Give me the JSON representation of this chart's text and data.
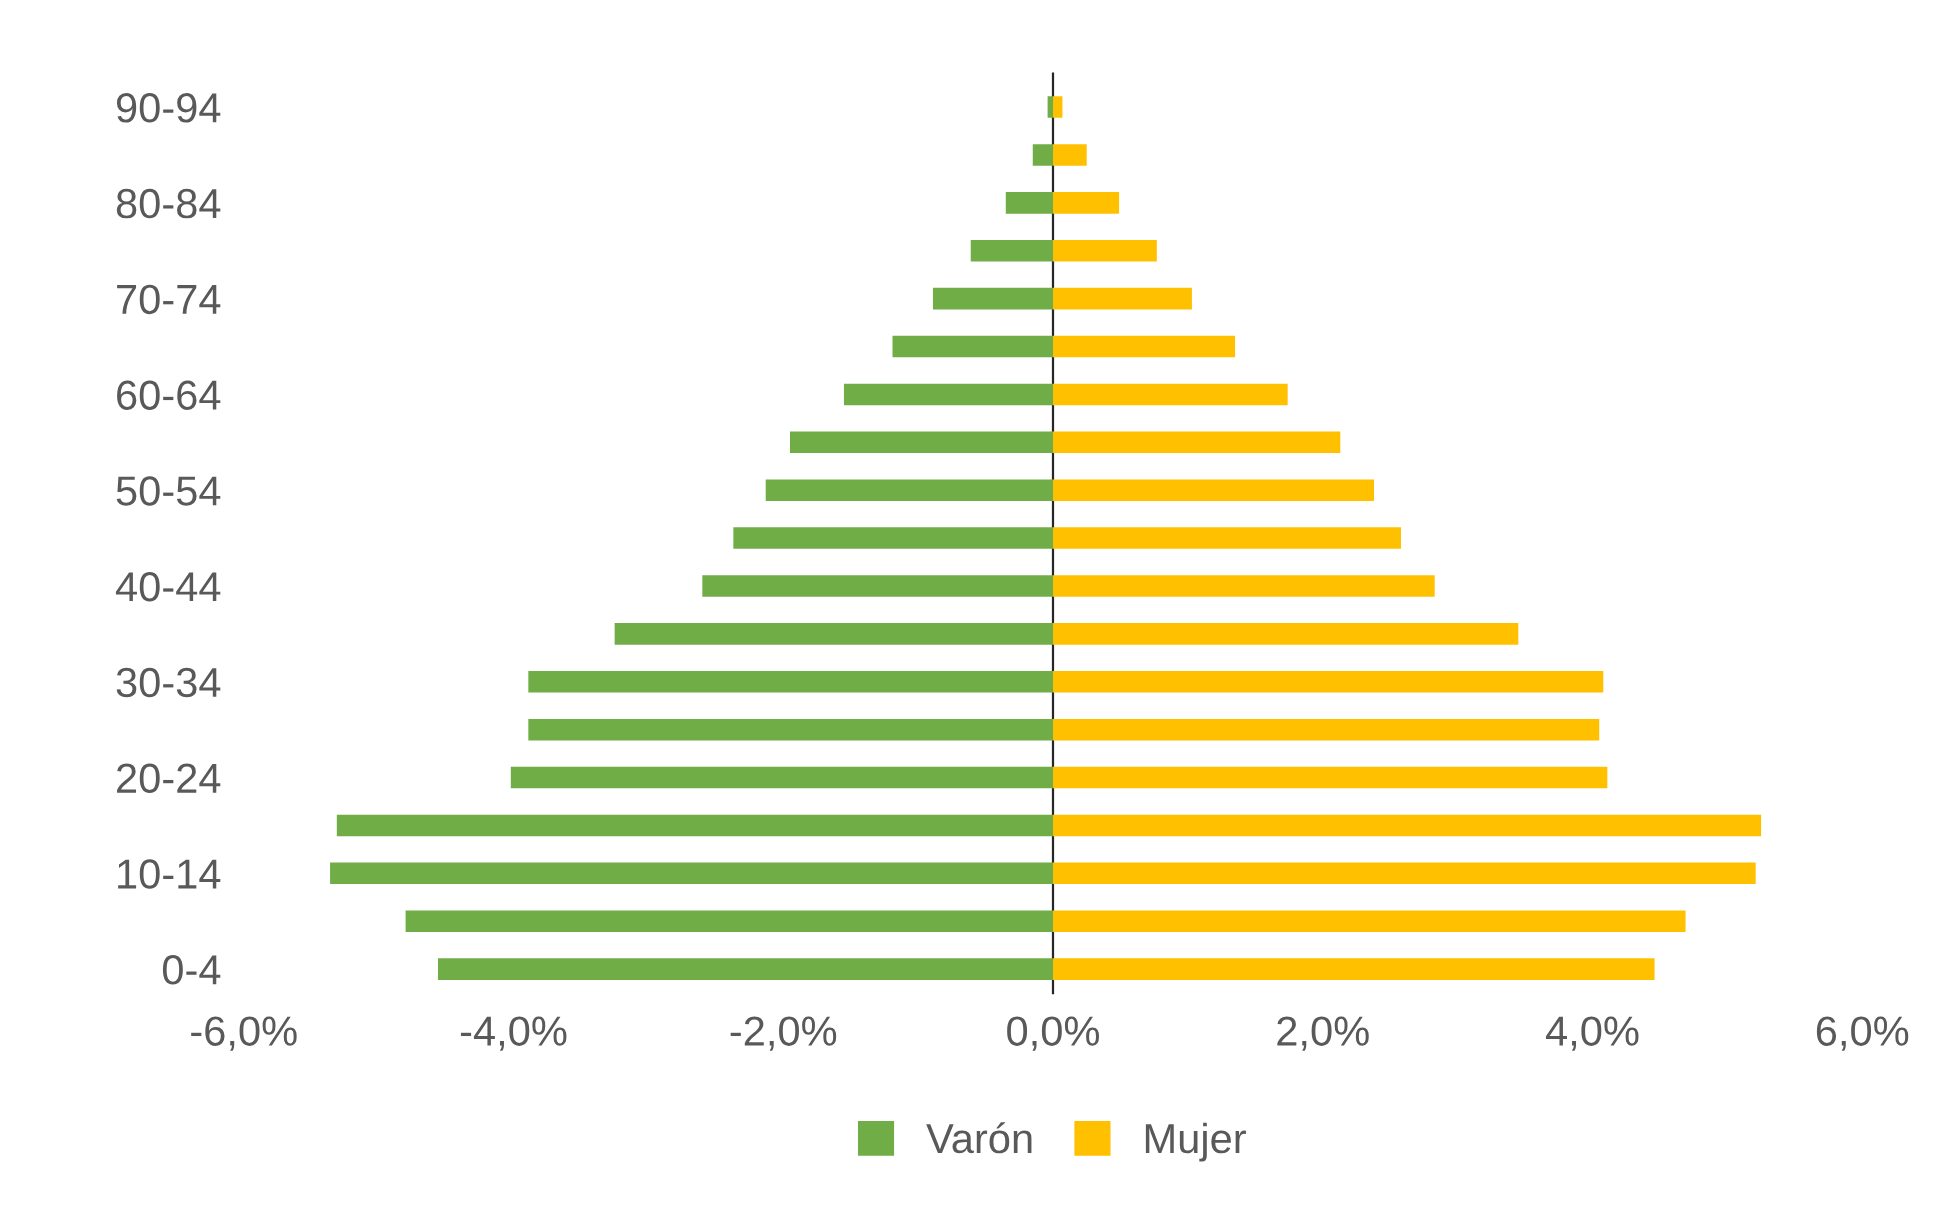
{
  "chart_data": {
    "type": "bar",
    "orientation": "horizontal",
    "stacked": true,
    "categories": [
      "90-94",
      null,
      "80-84",
      null,
      "70-74",
      null,
      "60-64",
      null,
      "50-54",
      null,
      "40-44",
      null,
      "30-34",
      null,
      "20-24",
      null,
      "10-14",
      null,
      "0-4"
    ],
    "series": [
      {
        "name": "Varón",
        "color": "#70ad47",
        "values": [
          -0.04,
          -0.15,
          -0.35,
          -0.61,
          -0.89,
          -1.19,
          -1.55,
          -1.95,
          -2.13,
          -2.37,
          -2.6,
          -3.25,
          -3.89,
          -3.89,
          -4.02,
          -5.31,
          -5.36,
          -4.8,
          -4.56
        ]
      },
      {
        "name": "Mujer",
        "color": "#ffc000",
        "values": [
          0.07,
          0.25,
          0.49,
          0.77,
          1.03,
          1.35,
          1.74,
          2.13,
          2.38,
          2.58,
          2.83,
          3.45,
          4.08,
          4.05,
          4.11,
          5.25,
          5.21,
          4.69,
          4.46
        ]
      }
    ],
    "xlim": [
      -6,
      6
    ],
    "xticks": [
      {
        "value": -6,
        "label": "-6,0%"
      },
      {
        "value": -4,
        "label": "-4,0%"
      },
      {
        "value": -2,
        "label": "-2,0%"
      },
      {
        "value": 0,
        "label": "0,0%"
      },
      {
        "value": 2,
        "label": "2,0%"
      },
      {
        "value": 4,
        "label": "4,0%"
      },
      {
        "value": 6,
        "label": "6,0%"
      }
    ],
    "legend": "bottom"
  }
}
